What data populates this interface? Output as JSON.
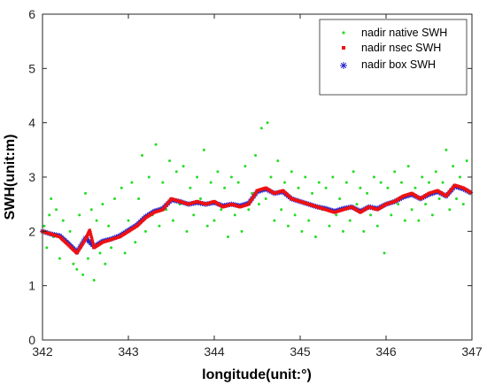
{
  "chart_data": {
    "type": "scatter",
    "title": "",
    "xlabel": "longitude(unit:°)",
    "ylabel": "SWH(unit:m)",
    "xlim": [
      342,
      347
    ],
    "ylim": [
      0,
      6
    ],
    "xticks": [
      342,
      343,
      344,
      345,
      346,
      347
    ],
    "yticks": [
      0,
      1,
      2,
      3,
      4,
      5,
      6
    ],
    "xtick_labels": [
      "342",
      "343",
      "344",
      "345",
      "346",
      "347"
    ],
    "ytick_labels": [
      "0",
      "1",
      "2",
      "3",
      "4",
      "5",
      "6"
    ],
    "grid": false,
    "legend_position": "top-right",
    "series": [
      {
        "name": "nadir native SWH",
        "marker": "dot",
        "color": "#22dd22",
        "points": [
          [
            342.02,
            2.1
          ],
          [
            342.05,
            1.7
          ],
          [
            342.08,
            2.3
          ],
          [
            342.1,
            2.6
          ],
          [
            342.13,
            1.9
          ],
          [
            342.16,
            2.4
          ],
          [
            342.2,
            1.5
          ],
          [
            342.24,
            2.2
          ],
          [
            342.28,
            1.8
          ],
          [
            342.32,
            2.0
          ],
          [
            342.36,
            1.4
          ],
          [
            342.4,
            1.3
          ],
          [
            342.43,
            2.3
          ],
          [
            342.47,
            1.2
          ],
          [
            342.5,
            2.7
          ],
          [
            342.53,
            1.5
          ],
          [
            342.57,
            2.4
          ],
          [
            342.6,
            1.1
          ],
          [
            342.63,
            2.2
          ],
          [
            342.67,
            1.6
          ],
          [
            342.7,
            2.5
          ],
          [
            342.73,
            1.4
          ],
          [
            342.77,
            2.1
          ],
          [
            342.8,
            1.7
          ],
          [
            342.84,
            2.6
          ],
          [
            342.88,
            1.9
          ],
          [
            342.92,
            2.8
          ],
          [
            342.96,
            1.6
          ],
          [
            343.0,
            2.2
          ],
          [
            343.04,
            2.9
          ],
          [
            343.08,
            1.8
          ],
          [
            343.12,
            2.6
          ],
          [
            343.16,
            3.4
          ],
          [
            343.2,
            2.0
          ],
          [
            343.24,
            3.0
          ],
          [
            343.28,
            2.3
          ],
          [
            343.32,
            3.6
          ],
          [
            343.36,
            2.1
          ],
          [
            343.4,
            2.9
          ],
          [
            343.44,
            2.4
          ],
          [
            343.48,
            3.3
          ],
          [
            343.52,
            2.2
          ],
          [
            343.56,
            3.1
          ],
          [
            343.6,
            2.5
          ],
          [
            343.64,
            3.2
          ],
          [
            343.68,
            2.0
          ],
          [
            343.72,
            2.8
          ],
          [
            343.76,
            2.3
          ],
          [
            343.8,
            3.0
          ],
          [
            343.84,
            2.6
          ],
          [
            343.88,
            3.5
          ],
          [
            343.92,
            2.1
          ],
          [
            343.96,
            2.9
          ],
          [
            344.0,
            2.2
          ],
          [
            344.04,
            3.1
          ],
          [
            344.08,
            2.4
          ],
          [
            344.12,
            2.8
          ],
          [
            344.16,
            1.9
          ],
          [
            344.2,
            3.0
          ],
          [
            344.24,
            2.3
          ],
          [
            344.28,
            2.9
          ],
          [
            344.32,
            2.0
          ],
          [
            344.36,
            3.2
          ],
          [
            344.4,
            2.4
          ],
          [
            344.44,
            2.7
          ],
          [
            344.48,
            3.4
          ],
          [
            344.52,
            2.5
          ],
          [
            344.55,
            3.9
          ],
          [
            344.6,
            2.6
          ],
          [
            344.62,
            4.0
          ],
          [
            344.66,
            3.0
          ],
          [
            344.7,
            2.2
          ],
          [
            344.74,
            3.3
          ],
          [
            344.78,
            2.4
          ],
          [
            344.82,
            2.9
          ],
          [
            344.86,
            2.1
          ],
          [
            344.9,
            3.1
          ],
          [
            344.94,
            2.3
          ],
          [
            344.98,
            2.8
          ],
          [
            345.02,
            2.0
          ],
          [
            345.06,
            3.0
          ],
          [
            345.1,
            2.2
          ],
          [
            345.14,
            2.7
          ],
          [
            345.18,
            1.9
          ],
          [
            345.22,
            2.9
          ],
          [
            345.26,
            2.4
          ],
          [
            345.3,
            2.8
          ],
          [
            345.34,
            2.1
          ],
          [
            345.38,
            3.0
          ],
          [
            345.42,
            2.3
          ],
          [
            345.46,
            2.6
          ],
          [
            345.5,
            2.0
          ],
          [
            345.54,
            2.9
          ],
          [
            345.58,
            2.2
          ],
          [
            345.62,
            3.1
          ],
          [
            345.66,
            2.5
          ],
          [
            345.7,
            2.8
          ],
          [
            345.74,
            2.0
          ],
          [
            345.78,
            2.7
          ],
          [
            345.82,
            2.3
          ],
          [
            345.86,
            3.0
          ],
          [
            345.9,
            2.1
          ],
          [
            345.94,
            2.9
          ],
          [
            345.98,
            1.6
          ],
          [
            346.02,
            2.8
          ],
          [
            346.06,
            2.3
          ],
          [
            346.1,
            3.1
          ],
          [
            346.14,
            2.5
          ],
          [
            346.18,
            2.9
          ],
          [
            346.22,
            2.2
          ],
          [
            346.26,
            3.2
          ],
          [
            346.3,
            2.4
          ],
          [
            346.34,
            2.8
          ],
          [
            346.38,
            2.2
          ],
          [
            346.42,
            3.0
          ],
          [
            346.46,
            2.5
          ],
          [
            346.5,
            2.9
          ],
          [
            346.54,
            2.3
          ],
          [
            346.58,
            3.1
          ],
          [
            346.62,
            2.6
          ],
          [
            346.66,
            2.9
          ],
          [
            346.7,
            3.5
          ],
          [
            346.74,
            2.4
          ],
          [
            346.78,
            3.2
          ],
          [
            346.82,
            2.6
          ],
          [
            346.86,
            3.0
          ],
          [
            346.9,
            2.5
          ],
          [
            346.94,
            3.3
          ],
          [
            346.97,
            2.7
          ]
        ]
      },
      {
        "name": "nadir nsec SWH",
        "marker": "square",
        "color": "#ee1111",
        "x": [
          342.0,
          342.1,
          342.2,
          342.3,
          342.4,
          342.5,
          342.55,
          342.6,
          342.7,
          342.8,
          342.9,
          343.0,
          343.1,
          343.2,
          343.3,
          343.4,
          343.5,
          343.6,
          343.7,
          343.8,
          343.9,
          344.0,
          344.1,
          344.2,
          344.3,
          344.4,
          344.5,
          344.6,
          344.7,
          344.8,
          344.9,
          345.0,
          345.1,
          345.2,
          345.3,
          345.4,
          345.5,
          345.6,
          345.7,
          345.8,
          345.9,
          346.0,
          346.1,
          346.2,
          346.3,
          346.4,
          346.5,
          346.6,
          346.7,
          346.8,
          346.9,
          347.0
        ],
        "y": [
          2.0,
          1.95,
          1.9,
          1.75,
          1.6,
          1.85,
          2.02,
          1.7,
          1.8,
          1.85,
          1.9,
          2.0,
          2.1,
          2.25,
          2.35,
          2.4,
          2.6,
          2.55,
          2.5,
          2.55,
          2.5,
          2.55,
          2.45,
          2.5,
          2.45,
          2.5,
          2.75,
          2.8,
          2.7,
          2.75,
          2.6,
          2.55,
          2.5,
          2.45,
          2.4,
          2.35,
          2.4,
          2.45,
          2.35,
          2.45,
          2.4,
          2.5,
          2.55,
          2.65,
          2.7,
          2.6,
          2.7,
          2.75,
          2.65,
          2.85,
          2.8,
          2.7
        ]
      },
      {
        "name": "nadir box SWH",
        "marker": "star",
        "color": "#2222cc",
        "x": [
          342.0,
          342.1,
          342.2,
          342.3,
          342.4,
          342.5,
          342.6,
          342.7,
          342.8,
          342.9,
          343.0,
          343.1,
          343.2,
          343.3,
          343.4,
          343.5,
          343.6,
          343.7,
          343.8,
          343.9,
          344.0,
          344.1,
          344.2,
          344.3,
          344.4,
          344.5,
          344.6,
          344.7,
          344.8,
          344.9,
          345.0,
          345.1,
          345.2,
          345.3,
          345.4,
          345.5,
          345.6,
          345.7,
          345.8,
          345.9,
          346.0,
          346.1,
          346.2,
          346.3,
          346.4,
          346.5,
          346.6,
          346.7,
          346.8,
          346.9,
          347.0
        ],
        "y": [
          2.0,
          1.95,
          1.92,
          1.78,
          1.62,
          1.88,
          1.72,
          1.82,
          1.86,
          1.92,
          2.02,
          2.12,
          2.27,
          2.37,
          2.42,
          2.58,
          2.55,
          2.5,
          2.53,
          2.5,
          2.53,
          2.47,
          2.5,
          2.47,
          2.52,
          2.73,
          2.78,
          2.7,
          2.73,
          2.6,
          2.55,
          2.5,
          2.45,
          2.42,
          2.37,
          2.42,
          2.45,
          2.37,
          2.45,
          2.42,
          2.5,
          2.55,
          2.63,
          2.68,
          2.6,
          2.68,
          2.73,
          2.65,
          2.83,
          2.78,
          2.7
        ]
      }
    ]
  }
}
